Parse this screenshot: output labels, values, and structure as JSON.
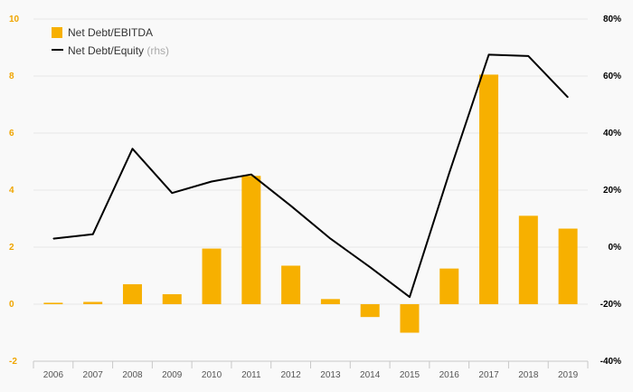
{
  "colors": {
    "bar": "#f7b000",
    "line": "#000000",
    "left_axis_text": "#f0a500",
    "right_axis_text": "#000000",
    "background": "#f9f9f9"
  },
  "chart_data": {
    "type": "bar",
    "categories": [
      "2006",
      "2007",
      "2008",
      "2009",
      "2010",
      "2011",
      "2012",
      "2013",
      "2014",
      "2015",
      "2016",
      "2017",
      "2018",
      "2019"
    ],
    "series": [
      {
        "name": "Net Debt/EBITDA",
        "type": "bar",
        "axis": "left",
        "values": [
          0.05,
          0.08,
          0.7,
          0.35,
          1.95,
          4.5,
          1.35,
          0.18,
          -0.45,
          -1.0,
          1.25,
          8.05,
          3.1,
          2.65
        ]
      },
      {
        "name": "Net Debt/Equity",
        "type": "line",
        "axis": "right",
        "values": [
          3,
          4.5,
          34.5,
          19,
          23,
          25.5,
          14.5,
          3,
          -7,
          -17.5,
          26,
          67.5,
          67,
          52.5
        ]
      }
    ],
    "legend": {
      "items": [
        {
          "label": "Net Debt/EBITDA",
          "suffix": ""
        },
        {
          "label": "Net Debt/Equity",
          "suffix": "(rhs)"
        }
      ],
      "position": "top-left"
    },
    "y_left": {
      "min": -2,
      "max": 10,
      "ticks": [
        "-2",
        "0",
        "2",
        "4",
        "6",
        "8",
        "10"
      ]
    },
    "y_right": {
      "min": -40,
      "max": 80,
      "ticks": [
        "-40%",
        "-20%",
        "0%",
        "20%",
        "40%",
        "60%",
        "80%"
      ]
    },
    "grid": true
  }
}
